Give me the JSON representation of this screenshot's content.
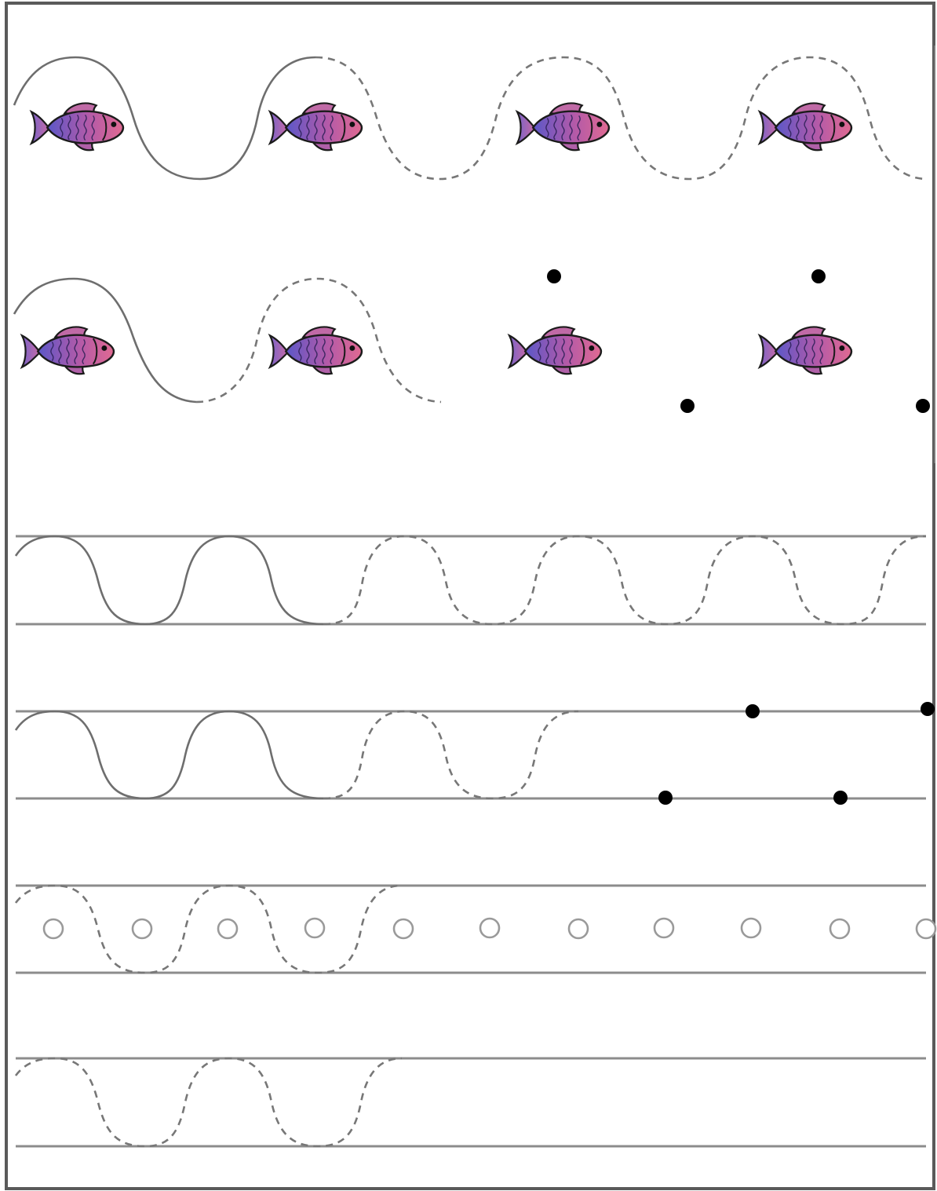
{
  "worksheet": {
    "type": "wave-line tracing practice",
    "colors": {
      "border": "#5a5a5a",
      "guide_line": "#8c8c8c",
      "trace_stroke": "#6e6e6e",
      "dot": "#000000",
      "fish_body_start": "#5b57c8",
      "fish_body_mid": "#b45aa8",
      "fish_body_end": "#e06a92",
      "fish_outline": "#1b1b1b"
    },
    "icons": [
      "fish-icon",
      "start-dot",
      "circle-marker"
    ],
    "rows": [
      {
        "kind": "fish-wave",
        "fish_count": 4,
        "solid_humps": 1.5,
        "dashed_humps": 2.5
      },
      {
        "kind": "fish-wave-with-dots",
        "fish_count": 4,
        "solid_humps": 0.75,
        "dashed_humps": 0.75,
        "dot_count": 4
      },
      {
        "kind": "lined-wave",
        "solid_humps": 2,
        "dashed_humps": 3.5
      },
      {
        "kind": "lined-wave-with-dots",
        "solid_humps": 2,
        "dashed_humps": 1.5,
        "dot_count": 4
      },
      {
        "kind": "lined-wave-with-circles",
        "dashed_humps": 2,
        "circle_count": 11
      },
      {
        "kind": "lined-wave",
        "dashed_humps": 2
      }
    ]
  }
}
